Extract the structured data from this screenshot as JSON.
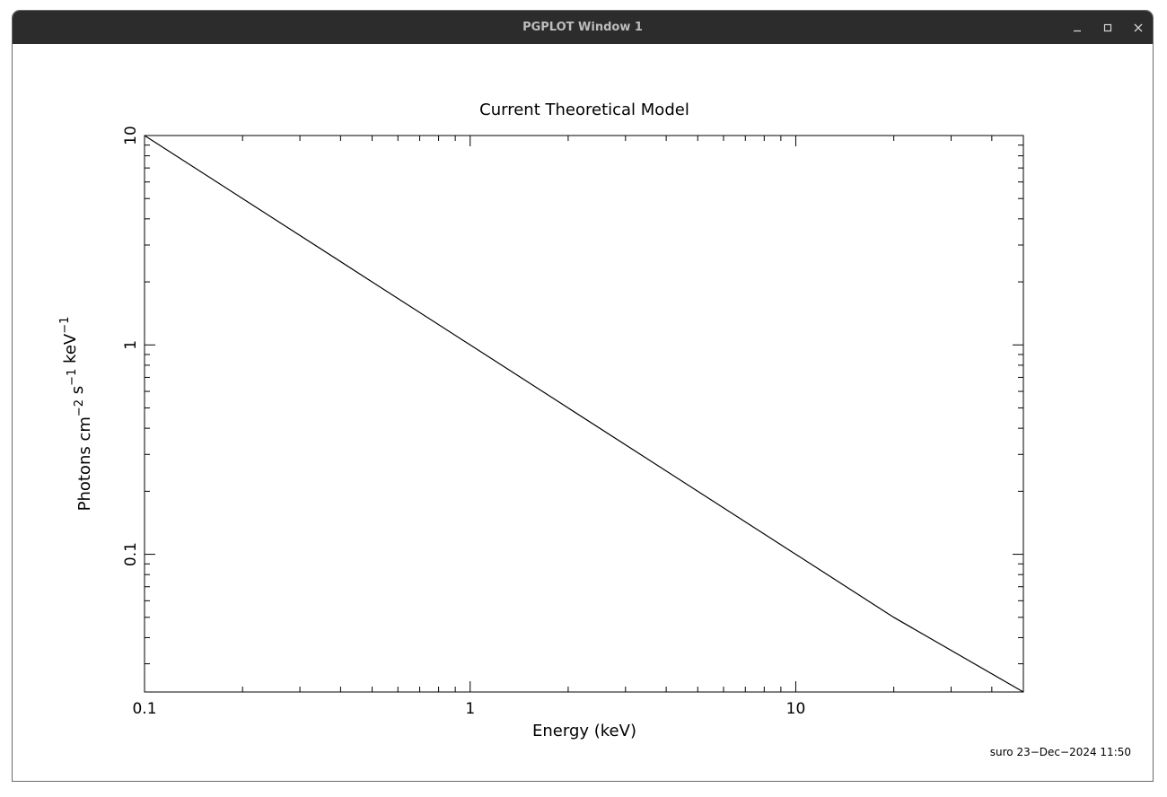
{
  "window": {
    "title": "PGPLOT Window 1",
    "controls": [
      "minimize",
      "maximize",
      "close"
    ]
  },
  "chart_data": {
    "type": "line",
    "title": "Current Theoretical Model",
    "xlabel": "Energy (keV)",
    "ylabel": {
      "parts": [
        {
          "text": "Photons cm",
          "sup": "−2"
        },
        {
          "text": " s",
          "sup": "−1"
        },
        {
          "text": " keV",
          "sup": "−1"
        }
      ]
    },
    "x_scale": "log",
    "y_scale": "log",
    "xlim": [
      0.1,
      50
    ],
    "ylim": [
      0.022,
      10
    ],
    "x_tick_labels": [
      "0.1",
      "1",
      "10"
    ],
    "x_tick_values": [
      0.1,
      1,
      10
    ],
    "y_tick_labels": [
      "10",
      "1",
      "0.1"
    ],
    "y_tick_values": [
      10,
      1,
      0.1
    ],
    "series": [
      {
        "x": [
          0.1,
          0.2,
          0.5,
          1,
          2,
          5,
          10,
          20,
          50
        ],
        "y": [
          10,
          5,
          2,
          1,
          0.5,
          0.2,
          0.1,
          0.05,
          0.02
        ]
      }
    ],
    "grid": false,
    "line_color": "#000000",
    "footer": "suro 23−Dec−2024 11:50"
  }
}
